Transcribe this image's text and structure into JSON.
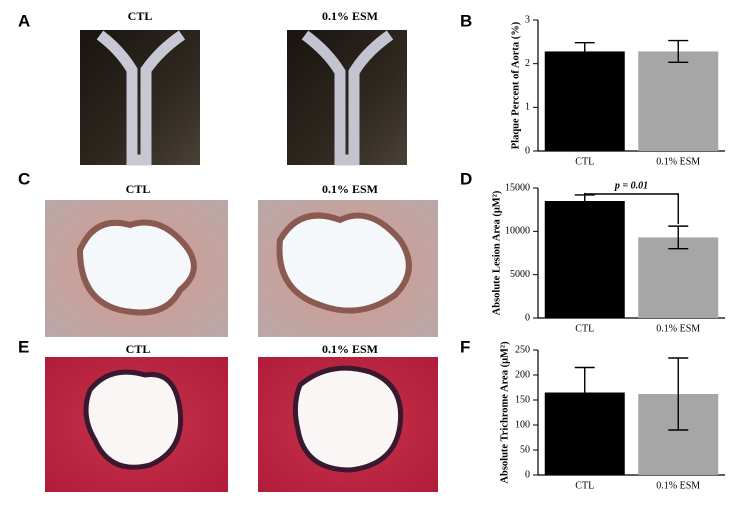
{
  "figure": {
    "labels": [
      "A",
      "B",
      "C",
      "D",
      "E",
      "F"
    ],
    "image_titles": [
      "CTL",
      "0.1% ESM",
      "CTL",
      "0.1% ESM",
      "CTL",
      "0.1% ESM"
    ]
  },
  "chart_data": [
    {
      "type": "bar",
      "ylabel": "Plaque Percent of Aorta  (%)",
      "categories": [
        "CTL",
        "0.1% ESM"
      ],
      "values": [
        2.28,
        2.28
      ],
      "errors": [
        0.2,
        0.25
      ],
      "colors": [
        "#000000",
        "#a6a6a6"
      ],
      "ylim": [
        0,
        3
      ],
      "yticks": [
        0,
        1,
        2,
        3
      ]
    },
    {
      "type": "bar",
      "ylabel": "Absolute Lesion Area (μM²)",
      "categories": [
        "CTL",
        "0.1% ESM"
      ],
      "values": [
        13500,
        9300
      ],
      "errors": [
        700,
        1300
      ],
      "colors": [
        "#000000",
        "#a6a6a6"
      ],
      "ylim": [
        0,
        15000
      ],
      "yticks": [
        0,
        5000,
        10000,
        15000
      ],
      "annotation": "p = 0.01"
    },
    {
      "type": "bar",
      "ylabel": "Absolute Trichrome Area (μM²)",
      "categories": [
        "CTL",
        "0.1% ESM"
      ],
      "values": [
        165,
        162
      ],
      "errors": [
        50,
        72
      ],
      "colors": [
        "#000000",
        "#a6a6a6"
      ],
      "ylim": [
        0,
        250
      ],
      "yticks": [
        0,
        50,
        100,
        150,
        200,
        250
      ]
    }
  ]
}
